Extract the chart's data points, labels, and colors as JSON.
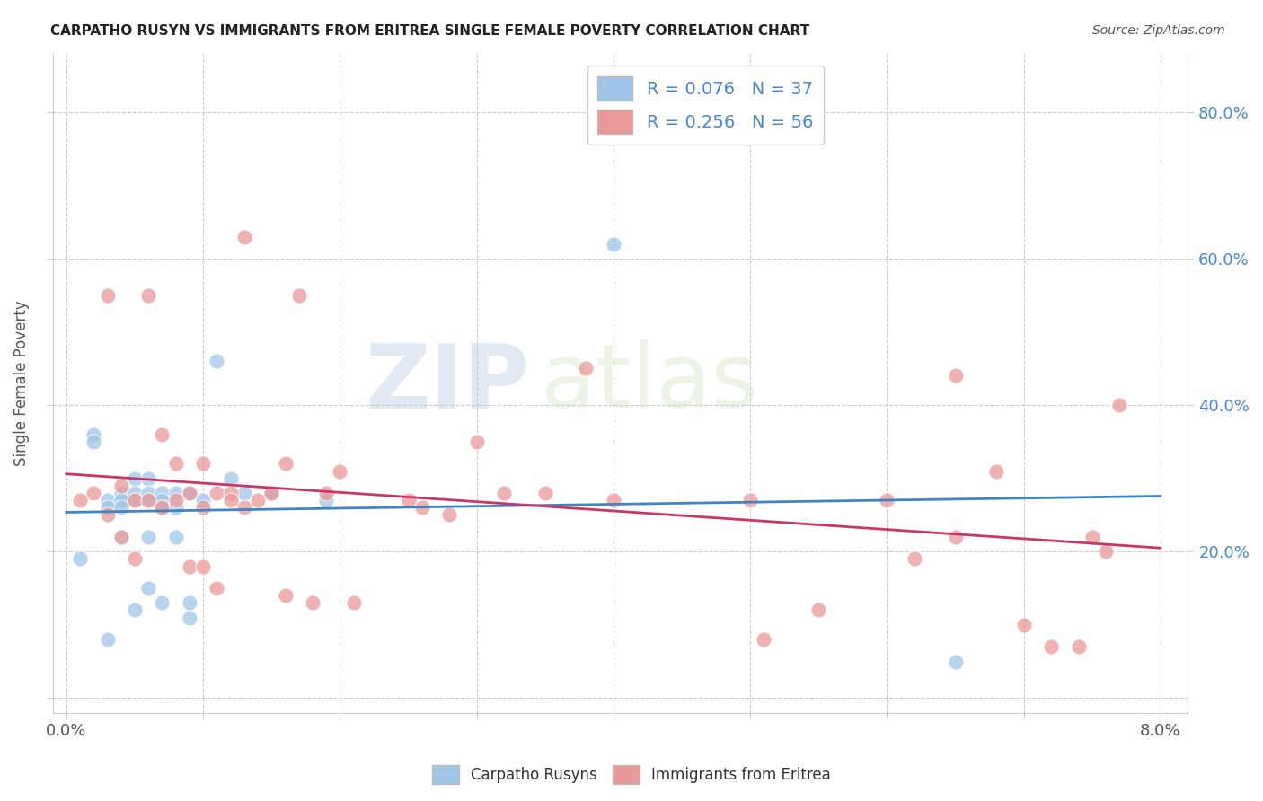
{
  "title": "CARPATHO RUSYN VS IMMIGRANTS FROM ERITREA SINGLE FEMALE POVERTY CORRELATION CHART",
  "source": "Source: ZipAtlas.com",
  "ylabel": "Single Female Poverty",
  "xlim": [
    0.0,
    0.08
  ],
  "ylim": [
    0.0,
    0.88
  ],
  "blue_color": "#9fc5e8",
  "pink_color": "#ea9999",
  "line_blue": "#3d85c8",
  "line_pink": "#cc3366",
  "watermark_zip": "ZIP",
  "watermark_atlas": "atlas",
  "background_color": "#ffffff",
  "grid_color": "#cccccc",
  "blue_scatter_x": [
    0.001,
    0.002,
    0.002,
    0.003,
    0.003,
    0.003,
    0.004,
    0.004,
    0.004,
    0.004,
    0.005,
    0.005,
    0.005,
    0.005,
    0.006,
    0.006,
    0.006,
    0.006,
    0.006,
    0.007,
    0.007,
    0.007,
    0.007,
    0.008,
    0.008,
    0.008,
    0.009,
    0.009,
    0.009,
    0.01,
    0.011,
    0.012,
    0.013,
    0.015,
    0.019,
    0.04,
    0.065
  ],
  "blue_scatter_y": [
    0.19,
    0.36,
    0.35,
    0.27,
    0.26,
    0.08,
    0.28,
    0.27,
    0.26,
    0.22,
    0.3,
    0.28,
    0.27,
    0.12,
    0.3,
    0.28,
    0.27,
    0.22,
    0.15,
    0.28,
    0.27,
    0.26,
    0.13,
    0.28,
    0.26,
    0.22,
    0.28,
    0.13,
    0.11,
    0.27,
    0.46,
    0.3,
    0.28,
    0.28,
    0.27,
    0.62,
    0.05
  ],
  "pink_scatter_x": [
    0.001,
    0.002,
    0.003,
    0.003,
    0.004,
    0.004,
    0.005,
    0.005,
    0.006,
    0.006,
    0.007,
    0.007,
    0.008,
    0.008,
    0.009,
    0.009,
    0.01,
    0.01,
    0.01,
    0.011,
    0.011,
    0.012,
    0.012,
    0.013,
    0.013,
    0.014,
    0.015,
    0.016,
    0.016,
    0.017,
    0.018,
    0.019,
    0.02,
    0.021,
    0.025,
    0.026,
    0.028,
    0.03,
    0.032,
    0.035,
    0.038,
    0.04,
    0.05,
    0.051,
    0.055,
    0.06,
    0.062,
    0.065,
    0.065,
    0.068,
    0.07,
    0.072,
    0.074,
    0.075,
    0.076,
    0.077
  ],
  "pink_scatter_y": [
    0.27,
    0.28,
    0.55,
    0.25,
    0.29,
    0.22,
    0.27,
    0.19,
    0.55,
    0.27,
    0.36,
    0.26,
    0.32,
    0.27,
    0.28,
    0.18,
    0.32,
    0.26,
    0.18,
    0.28,
    0.15,
    0.28,
    0.27,
    0.63,
    0.26,
    0.27,
    0.28,
    0.32,
    0.14,
    0.55,
    0.13,
    0.28,
    0.31,
    0.13,
    0.27,
    0.26,
    0.25,
    0.35,
    0.28,
    0.28,
    0.45,
    0.27,
    0.27,
    0.08,
    0.12,
    0.27,
    0.19,
    0.22,
    0.44,
    0.31,
    0.1,
    0.07,
    0.07,
    0.22,
    0.2,
    0.4
  ]
}
